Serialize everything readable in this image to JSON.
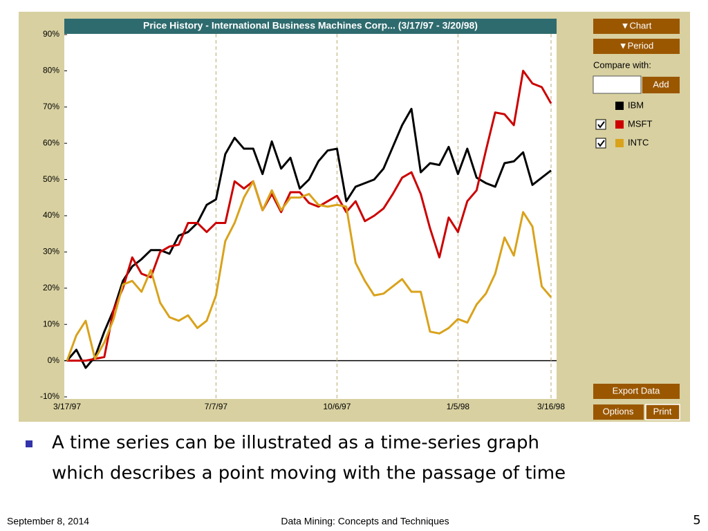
{
  "chart_data": {
    "type": "line",
    "title": "Price History - International Business Machines Corp... (3/17/97 - 3/20/98)",
    "categories": [
      "3/17/97",
      null,
      null,
      null,
      null,
      null,
      null,
      null,
      null,
      null,
      null,
      null,
      null,
      null,
      null,
      null,
      "7/7/97",
      null,
      null,
      null,
      null,
      null,
      null,
      null,
      null,
      null,
      null,
      null,
      null,
      "10/6/97",
      null,
      null,
      null,
      null,
      null,
      null,
      null,
      null,
      null,
      null,
      null,
      null,
      "1/5/98",
      null,
      null,
      null,
      null,
      null,
      null,
      null,
      null,
      null,
      "3/16/98"
    ],
    "series": [
      {
        "name": "IBM",
        "color": "#000000",
        "checked": false,
        "values": [
          0,
          3,
          -2,
          1,
          8,
          14,
          22,
          26,
          28,
          30.5,
          30.5,
          29.5,
          34.5,
          35.5,
          38,
          43,
          44.5,
          57,
          61.5,
          58.5,
          58.5,
          51.5,
          60.5,
          53,
          56,
          47.5,
          50,
          55,
          58,
          58.5,
          44,
          48,
          49,
          50,
          53,
          59,
          65,
          69.5,
          52,
          54.5,
          54,
          59,
          51.5,
          58.5,
          50.5,
          49,
          48,
          54.5,
          55,
          57.5,
          48.5,
          50.5,
          52.5
        ]
      },
      {
        "name": "MSFT",
        "color": "#cc0000",
        "checked": true,
        "values": [
          0,
          0,
          0,
          0.5,
          1,
          14,
          20,
          28.5,
          24,
          23,
          30,
          31.5,
          32,
          38,
          38,
          35.5,
          38,
          38,
          49.5,
          47.5,
          49.5,
          41.5,
          46,
          41,
          46.5,
          46.5,
          43.5,
          42.5,
          44,
          45.5,
          41,
          44,
          38.5,
          40,
          42,
          46,
          50.5,
          52,
          46,
          36.5,
          28.5,
          39.5,
          35.5,
          44,
          47,
          58,
          68.5,
          68,
          65,
          80,
          76.5,
          75.5,
          71
        ]
      },
      {
        "name": "INTC",
        "color": "#d9a21b",
        "checked": true,
        "values": [
          0,
          7,
          11,
          0.5,
          5,
          11.5,
          21,
          22,
          19,
          25,
          16,
          12,
          11,
          12.5,
          9,
          11,
          18,
          33,
          38,
          45,
          49.5,
          41.5,
          47,
          41.5,
          45,
          45,
          46,
          43,
          42.5,
          43,
          42.5,
          27,
          22,
          18,
          18.5,
          20.5,
          22.5,
          19,
          19,
          8,
          7.5,
          9,
          11.5,
          10.5,
          15.5,
          18.5,
          24,
          34,
          29,
          41,
          37,
          20.5,
          17.5
        ]
      }
    ],
    "ylim": [
      -10,
      90
    ],
    "yticks": [
      {
        "value": -10,
        "label": "-10%"
      },
      {
        "value": 0,
        "label": "0%"
      },
      {
        "value": 10,
        "label": "10%"
      },
      {
        "value": 20,
        "label": "20%"
      },
      {
        "value": 30,
        "label": "30%"
      },
      {
        "value": 40,
        "label": "40%"
      },
      {
        "value": 50,
        "label": "50%"
      },
      {
        "value": 60,
        "label": "60%"
      },
      {
        "value": 70,
        "label": "70%"
      },
      {
        "value": 80,
        "label": "80%"
      },
      {
        "value": 90,
        "label": "90%"
      }
    ]
  },
  "sidebar": {
    "chart_button": "▼Chart",
    "period_button": "▼Period",
    "compare_label": "Compare with:",
    "add_button": "Add",
    "export_button": "Export Data",
    "options_button": "Options",
    "print_button": "Print"
  },
  "slide": {
    "bullet": [
      "A time series can be illustrated as a time-series graph",
      "which describes a point moving with the passage of time"
    ],
    "footer_date": "September 8, 2014",
    "footer_title": "Data Mining: Concepts and Techniques",
    "page_number": "5"
  }
}
